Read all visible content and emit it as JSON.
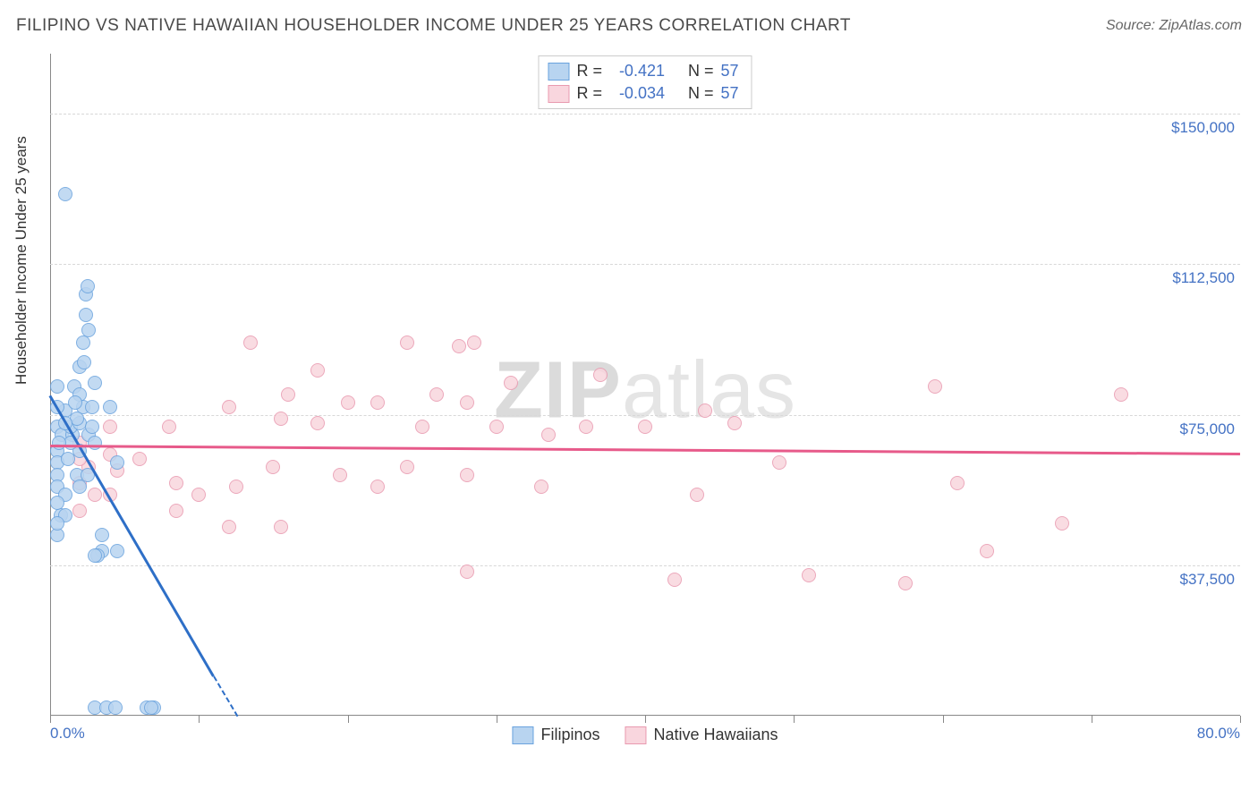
{
  "title": "FILIPINO VS NATIVE HAWAIIAN HOUSEHOLDER INCOME UNDER 25 YEARS CORRELATION CHART",
  "source_prefix": "Source: ",
  "source_name": "ZipAtlas.com",
  "watermark_bold": "ZIP",
  "watermark_rest": "atlas",
  "y_axis_label": "Householder Income Under 25 years",
  "chart": {
    "type": "scatter",
    "xlim": [
      0,
      80
    ],
    "ylim": [
      0,
      165000
    ],
    "x_tick_labels": {
      "0": "0.0%",
      "80": "80.0%"
    },
    "x_tick_positions": [
      0,
      10,
      20,
      30,
      40,
      50,
      60,
      70,
      80
    ],
    "y_gridlines": [
      37500,
      75000,
      112500,
      150000
    ],
    "y_tick_labels": {
      "37500": "$37,500",
      "75000": "$75,000",
      "112500": "$112,500",
      "150000": "$150,000"
    },
    "background_color": "#ffffff",
    "grid_color": "#d8d8d8",
    "axis_color": "#888888",
    "tick_label_color": "#4472c4",
    "point_radius": 8,
    "series": [
      {
        "name": "Filipinos",
        "fill": "#b8d4f0",
        "stroke": "#6aa3de",
        "trend_color": "#2e6fc7",
        "R": "-0.421",
        "N": "57",
        "trend": {
          "x1": 0,
          "y1": 80000,
          "x2": 11,
          "y2": 10000
        },
        "trend_dash": {
          "x1": 11,
          "y1": 10000,
          "x2": 12.6,
          "y2": 0
        },
        "points": [
          [
            1.0,
            130000
          ],
          [
            2.4,
            105000
          ],
          [
            2.4,
            100000
          ],
          [
            2.5,
            107000
          ],
          [
            2.6,
            96000
          ],
          [
            2.0,
            87000
          ],
          [
            2.3,
            88000
          ],
          [
            1.6,
            82000
          ],
          [
            0.5,
            82000
          ],
          [
            2.0,
            80000
          ],
          [
            3.0,
            83000
          ],
          [
            2.2,
            77000
          ],
          [
            4.0,
            77000
          ],
          [
            1.0,
            76000
          ],
          [
            0.5,
            72000
          ],
          [
            0.8,
            70000
          ],
          [
            1.5,
            70000
          ],
          [
            2.6,
            70000
          ],
          [
            1.4,
            72000
          ],
          [
            2.0,
            66000
          ],
          [
            0.5,
            66000
          ],
          [
            0.5,
            63000
          ],
          [
            0.5,
            60000
          ],
          [
            0.5,
            57000
          ],
          [
            1.2,
            64000
          ],
          [
            1.8,
            60000
          ],
          [
            1.0,
            55000
          ],
          [
            2.0,
            57000
          ],
          [
            2.5,
            60000
          ],
          [
            0.7,
            50000
          ],
          [
            0.5,
            53000
          ],
          [
            1.0,
            50000
          ],
          [
            3.5,
            45000
          ],
          [
            3.5,
            41000
          ],
          [
            3.2,
            40000
          ],
          [
            3.0,
            40000
          ],
          [
            4.5,
            41000
          ],
          [
            0.5,
            45000
          ],
          [
            0.5,
            48000
          ],
          [
            4.5,
            63000
          ],
          [
            3.0,
            68000
          ],
          [
            2.0,
            73000
          ],
          [
            1.4,
            68000
          ],
          [
            1.8,
            74000
          ],
          [
            2.8,
            72000
          ],
          [
            3.0,
            2000
          ],
          [
            3.8,
            2000
          ],
          [
            4.4,
            2000
          ],
          [
            6.5,
            2000
          ],
          [
            7.0,
            2000
          ],
          [
            6.8,
            2000
          ],
          [
            2.2,
            93000
          ],
          [
            2.8,
            77000
          ],
          [
            0.6,
            68000
          ],
          [
            1.7,
            78000
          ],
          [
            1.0,
            73000
          ],
          [
            0.5,
            77000
          ]
        ]
      },
      {
        "name": "Native Hawaiians",
        "fill": "#f9d6de",
        "stroke": "#e99ab0",
        "trend_color": "#e75a8a",
        "R": "-0.034",
        "N": "57",
        "trend": {
          "x1": 0,
          "y1": 67500,
          "x2": 80,
          "y2": 65500
        },
        "points": [
          [
            2.0,
            68000
          ],
          [
            2.0,
            58000
          ],
          [
            3.0,
            55000
          ],
          [
            4.0,
            72000
          ],
          [
            4.0,
            55000
          ],
          [
            8.0,
            72000
          ],
          [
            8.5,
            58000
          ],
          [
            8.5,
            51000
          ],
          [
            10.0,
            55000
          ],
          [
            12.0,
            77000
          ],
          [
            12.0,
            47000
          ],
          [
            13.5,
            93000
          ],
          [
            15.0,
            62000
          ],
          [
            15.5,
            47000
          ],
          [
            15.5,
            74000
          ],
          [
            16.0,
            80000
          ],
          [
            18.0,
            86000
          ],
          [
            18.0,
            73000
          ],
          [
            19.5,
            60000
          ],
          [
            20.0,
            78000
          ],
          [
            22.0,
            57000
          ],
          [
            22.0,
            78000
          ],
          [
            24.0,
            93000
          ],
          [
            24.0,
            62000
          ],
          [
            25.0,
            72000
          ],
          [
            26.0,
            80000
          ],
          [
            27.5,
            92000
          ],
          [
            28.0,
            60000
          ],
          [
            28.5,
            93000
          ],
          [
            28.0,
            78000
          ],
          [
            28.0,
            36000
          ],
          [
            30.0,
            72000
          ],
          [
            31.0,
            83000
          ],
          [
            33.0,
            57000
          ],
          [
            33.5,
            70000
          ],
          [
            36.0,
            72000
          ],
          [
            37.0,
            85000
          ],
          [
            40.0,
            72000
          ],
          [
            42.0,
            34000
          ],
          [
            43.5,
            55000
          ],
          [
            44.0,
            76000
          ],
          [
            46.0,
            73000
          ],
          [
            49.0,
            63000
          ],
          [
            51.0,
            35000
          ],
          [
            57.5,
            33000
          ],
          [
            59.5,
            82000
          ],
          [
            61.0,
            58000
          ],
          [
            63.0,
            41000
          ],
          [
            68.0,
            48000
          ],
          [
            72.0,
            80000
          ],
          [
            4.0,
            65000
          ],
          [
            2.6,
            62000
          ],
          [
            2.0,
            64000
          ],
          [
            2.0,
            51000
          ],
          [
            12.5,
            57000
          ],
          [
            4.5,
            61000
          ],
          [
            6.0,
            64000
          ]
        ]
      }
    ]
  },
  "legend_top": {
    "r_label": "R =",
    "n_label": "N ="
  },
  "legend_bottom_labels": [
    "Filipinos",
    "Native Hawaiians"
  ]
}
